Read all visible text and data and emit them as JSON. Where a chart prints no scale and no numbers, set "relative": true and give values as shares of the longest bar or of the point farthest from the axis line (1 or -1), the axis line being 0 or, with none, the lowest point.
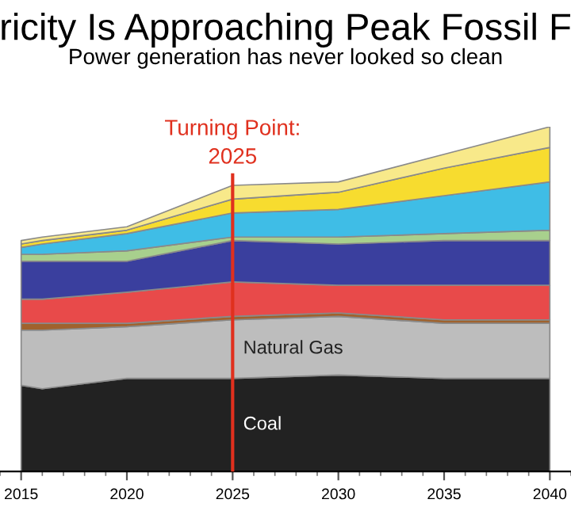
{
  "chart_data": {
    "type": "area",
    "stacked": true,
    "relative": true,
    "title": "ricity Is Approaching Peak Fossil F",
    "subtitle": "Power generation has never looked so clean",
    "x": [
      2015,
      2016,
      2020,
      2025,
      2030,
      2035,
      2040
    ],
    "xlim": [
      2014,
      2041
    ],
    "xticks": [
      2015,
      2020,
      2025,
      2030,
      2035,
      2040
    ],
    "series": [
      {
        "name": "Coal",
        "color": "#222222",
        "values": [
          0.25,
          0.24,
          0.27,
          0.27,
          0.28,
          0.27,
          0.27
        ]
      },
      {
        "name": "Natural Gas",
        "color": "#bdbdbd",
        "values": [
          0.16,
          0.17,
          0.15,
          0.17,
          0.17,
          0.16,
          0.16
        ]
      },
      {
        "color": "#a0622d",
        "values": [
          0.02,
          0.02,
          0.01,
          0.01,
          0.01,
          0.01,
          0.01
        ]
      },
      {
        "color": "#e84a4a",
        "values": [
          0.07,
          0.07,
          0.09,
          0.1,
          0.08,
          0.1,
          0.1
        ]
      },
      {
        "color": "#3a3f9e",
        "values": [
          0.11,
          0.11,
          0.09,
          0.12,
          0.12,
          0.13,
          0.13
        ]
      },
      {
        "color": "#a8d08d",
        "values": [
          0.02,
          0.02,
          0.03,
          0.01,
          0.02,
          0.02,
          0.03
        ]
      },
      {
        "color": "#3fbde6",
        "values": [
          0.02,
          0.03,
          0.05,
          0.07,
          0.08,
          0.11,
          0.14
        ]
      },
      {
        "color": "#f7dc2f",
        "values": [
          0.01,
          0.01,
          0.01,
          0.04,
          0.05,
          0.08,
          0.1
        ]
      },
      {
        "color": "#f8e98a",
        "values": [
          0.01,
          0.01,
          0.01,
          0.04,
          0.03,
          0.04,
          0.06
        ]
      }
    ],
    "ref_lines": [
      {
        "axis": "x",
        "value": 2025,
        "label": "Turning Point:\n2025",
        "color": "#e0301e"
      }
    ]
  }
}
